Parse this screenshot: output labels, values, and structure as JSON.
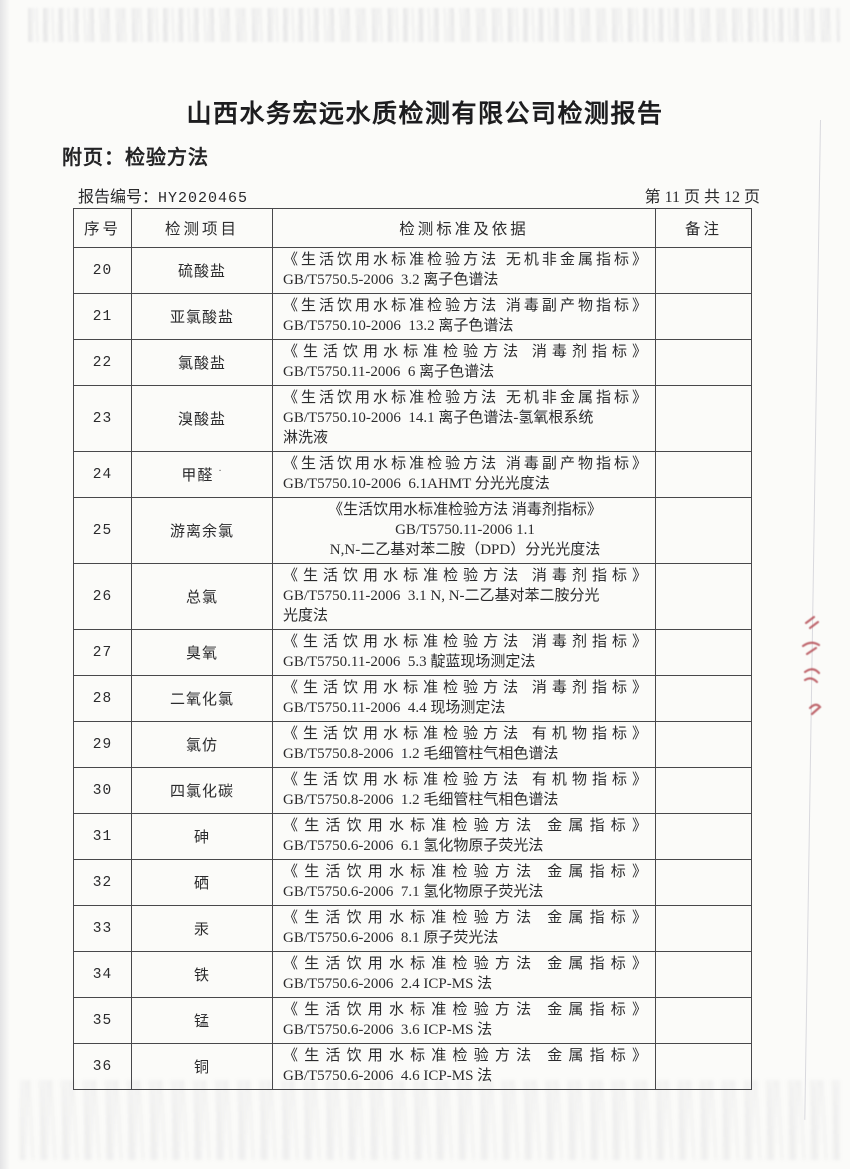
{
  "page": {
    "title": "山西水务宏远水质检测有限公司检测报告",
    "subtitle": "附页：检验方法",
    "report_no_label": "报告编号：",
    "report_no": "HY2020465",
    "page_info": "第 11 页 共 12 页"
  },
  "table": {
    "headers": [
      "序号",
      "检测项目",
      "检测标准及依据",
      "备注"
    ],
    "rows": [
      {
        "no": "20",
        "item": "硫酸盐",
        "standard": [
          "《生活饮用水标准检验方法 无机非金属指标》",
          "GB/T5750.5-2006  3.2 离子色谱法"
        ],
        "remark": ""
      },
      {
        "no": "21",
        "item": "亚氯酸盐",
        "standard": [
          "《生活饮用水标准检验方法 消毒副产物指标》",
          "GB/T5750.10-2006  13.2 离子色谱法"
        ],
        "remark": ""
      },
      {
        "no": "22",
        "item": "氯酸盐",
        "standard": [
          "《生活饮用水标准检验方法 消毒剂指标》",
          "GB/T5750.11-2006  6 离子色谱法"
        ],
        "remark": ""
      },
      {
        "no": "23",
        "item": "溴酸盐",
        "standard": [
          "《生活饮用水标准检验方法 无机非金属指标》",
          "GB/T5750.10-2006  14.1 离子色谱法-氢氧根系统",
          "淋洗液"
        ],
        "remark": ""
      },
      {
        "no": "24",
        "item": "甲醛",
        "mark": "·",
        "standard": [
          "《生活饮用水标准检验方法 消毒副产物指标》",
          "GB/T5750.10-2006  6.1AHMT 分光光度法"
        ],
        "remark": ""
      },
      {
        "no": "25",
        "item": "游离余氯",
        "align": "center",
        "standard": [
          "《生活饮用水标准检验方法 消毒剂指标》",
          "GB/T5750.11-2006 1.1",
          "N,N-二乙基对苯二胺（DPD）分光光度法"
        ],
        "remark": ""
      },
      {
        "no": "26",
        "item": "总氯",
        "standard": [
          "《生活饮用水标准检验方法 消毒剂指标》",
          "GB/T5750.11-2006  3.1 N, N-二乙基对苯二胺分光",
          "光度法"
        ],
        "remark": ""
      },
      {
        "no": "27",
        "item": "臭氧",
        "standard": [
          "《生活饮用水标准检验方法 消毒剂指标》",
          "GB/T5750.11-2006  5.3 靛蓝现场测定法"
        ],
        "remark": ""
      },
      {
        "no": "28",
        "item": "二氧化氯",
        "standard": [
          "《生活饮用水标准检验方法 消毒剂指标》",
          "GB/T5750.11-2006  4.4 现场测定法"
        ],
        "remark": ""
      },
      {
        "no": "29",
        "item": "氯仿",
        "standard": [
          "《生活饮用水标准检验方法 有机物指标》",
          "GB/T5750.8-2006  1.2 毛细管柱气相色谱法"
        ],
        "remark": ""
      },
      {
        "no": "30",
        "item": "四氯化碳",
        "standard": [
          "《生活饮用水标准检验方法 有机物指标》",
          "GB/T5750.8-2006  1.2 毛细管柱气相色谱法"
        ],
        "remark": ""
      },
      {
        "no": "31",
        "item": "砷",
        "standard": [
          "《生活饮用水标准检验方法 金属指标》",
          "GB/T5750.6-2006  6.1 氢化物原子荧光法"
        ],
        "remark": ""
      },
      {
        "no": "32",
        "item": "硒",
        "standard": [
          "《生活饮用水标准检验方法 金属指标》",
          "GB/T5750.6-2006  7.1 氢化物原子荧光法"
        ],
        "remark": ""
      },
      {
        "no": "33",
        "item": "汞",
        "standard": [
          "《生活饮用水标准检验方法 金属指标》",
          "GB/T5750.6-2006  8.1 原子荧光法"
        ],
        "remark": ""
      },
      {
        "no": "34",
        "item": "铁",
        "standard": [
          "《生活饮用水标准检验方法 金属指标》",
          "GB/T5750.6-2006  2.4 ICP-MS 法"
        ],
        "remark": ""
      },
      {
        "no": "35",
        "item": "锰",
        "standard": [
          "《生活饮用水标准检验方法 金属指标》",
          "GB/T5750.6-2006  3.6 ICP-MS 法"
        ],
        "remark": ""
      },
      {
        "no": "36",
        "item": "铜",
        "standard": [
          "《生活饮用水标准检验方法 金属指标》",
          "GB/T5750.6-2006  4.6 ICP-MS 法"
        ],
        "remark": ""
      }
    ]
  },
  "artifacts": {
    "red_seal_color": "#b2454e",
    "paper_edge_color": "#d9d9de",
    "text_color": "#2e2e30",
    "border_color": "#48484b"
  }
}
